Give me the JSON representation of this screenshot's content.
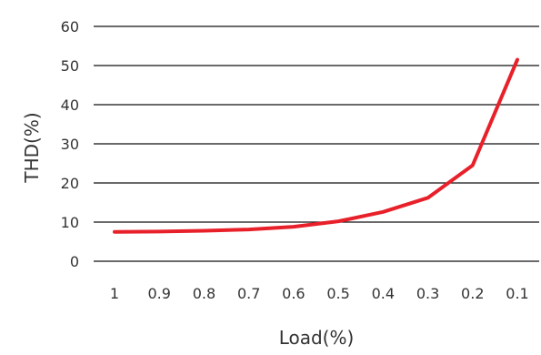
{
  "chart_data": {
    "type": "line",
    "title": "",
    "xlabel": "Load(%)",
    "ylabel": "THD(%)",
    "categories": [
      "1",
      "0.9",
      "0.8",
      "0.7",
      "0.6",
      "0.5",
      "0.4",
      "0.3",
      "0.2",
      "0.1"
    ],
    "x": [
      1,
      0.9,
      0.8,
      0.7,
      0.6,
      0.5,
      0.4,
      0.3,
      0.2,
      0.1
    ],
    "y_ticks": [
      0,
      10,
      20,
      30,
      40,
      50,
      60
    ],
    "y_tick_labels": [
      "0",
      "10",
      "20",
      "30",
      "40",
      "50",
      "60"
    ],
    "ylim": [
      0,
      60
    ],
    "grid": true,
    "legend": "none",
    "series": [
      {
        "values": [
          7.5,
          7.6,
          7.8,
          8.1,
          8.8,
          10.2,
          12.6,
          16.2,
          24.5,
          51.5
        ],
        "color": "#e8202a"
      }
    ],
    "colors": {
      "gridline": "#111111",
      "text": "#333333",
      "series": "#e8202a"
    }
  }
}
